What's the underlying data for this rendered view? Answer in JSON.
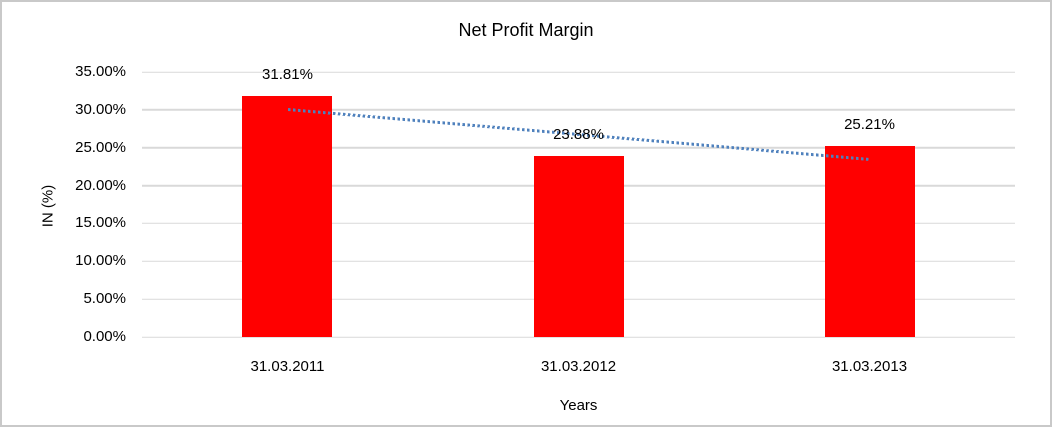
{
  "window": {
    "background": "#FFFFFF",
    "border_color": "#C9C9C9"
  },
  "chart_data": {
    "type": "bar",
    "title": "Net Profit Margin",
    "categories": [
      "31.03.2011",
      "31.03.2012",
      "31.03.2013"
    ],
    "values": [
      31.81,
      23.88,
      25.21
    ],
    "data_labels": [
      "31.81%",
      "23.88%",
      "25.21%"
    ],
    "xlabel": "Years",
    "ylabel": "IN (%)",
    "ylim": [
      0,
      35
    ],
    "ytick_step": 5,
    "ytick_labels": [
      "0.00%",
      "5.00%",
      "10.00%",
      "15.00%",
      "20.00%",
      "25.00%",
      "30.00%",
      "35.00%"
    ],
    "grid": true,
    "legend": "none",
    "bar_color": "#FF0000",
    "gridline_color": "#D9D9D9",
    "text_color": "#000000",
    "trendline": {
      "type": "linear",
      "style": "dotted",
      "color": "#4F81BD",
      "start_value": 30.27,
      "end_value": 23.67
    }
  }
}
